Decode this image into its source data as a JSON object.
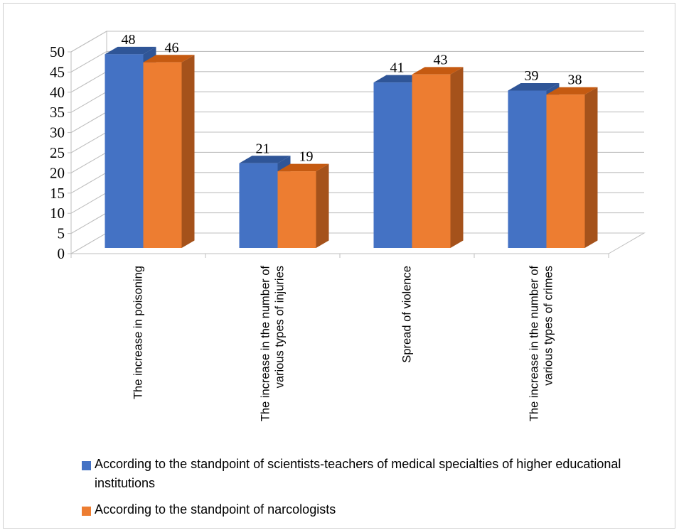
{
  "chart_data": {
    "type": "bar",
    "categories": [
      "The increase in poisoning",
      "The increase in the number of various types of injuries",
      "Spread of violence",
      "The increase in the number of various types of crimes"
    ],
    "category_lines": [
      [
        "The increase in poisoning"
      ],
      [
        "The increase in the number of",
        "various types of injuries"
      ],
      [
        "Spread of violence"
      ],
      [
        "The increase in the number of",
        "various types of crimes"
      ]
    ],
    "series": [
      {
        "name": "According to the standpoint of scientists-teachers of medical specialties of higher educational institutions",
        "values": [
          48,
          21,
          41,
          39
        ],
        "color": "#4472C4",
        "side_color": "#2F5597",
        "top_color": "#2F5597"
      },
      {
        "name": "According to the standpoint of narcologists",
        "values": [
          46,
          19,
          43,
          38
        ],
        "color": "#ED7D31",
        "side_color": "#A5521B",
        "top_color": "#C55A11"
      }
    ],
    "yticks": [
      "0",
      "5",
      "10",
      "15",
      "20",
      "25",
      "30",
      "35",
      "40",
      "45",
      "50"
    ],
    "ylim": [
      0,
      50
    ],
    "grid": true,
    "legend_position": "bottom",
    "style": "3d-clustered-column"
  }
}
